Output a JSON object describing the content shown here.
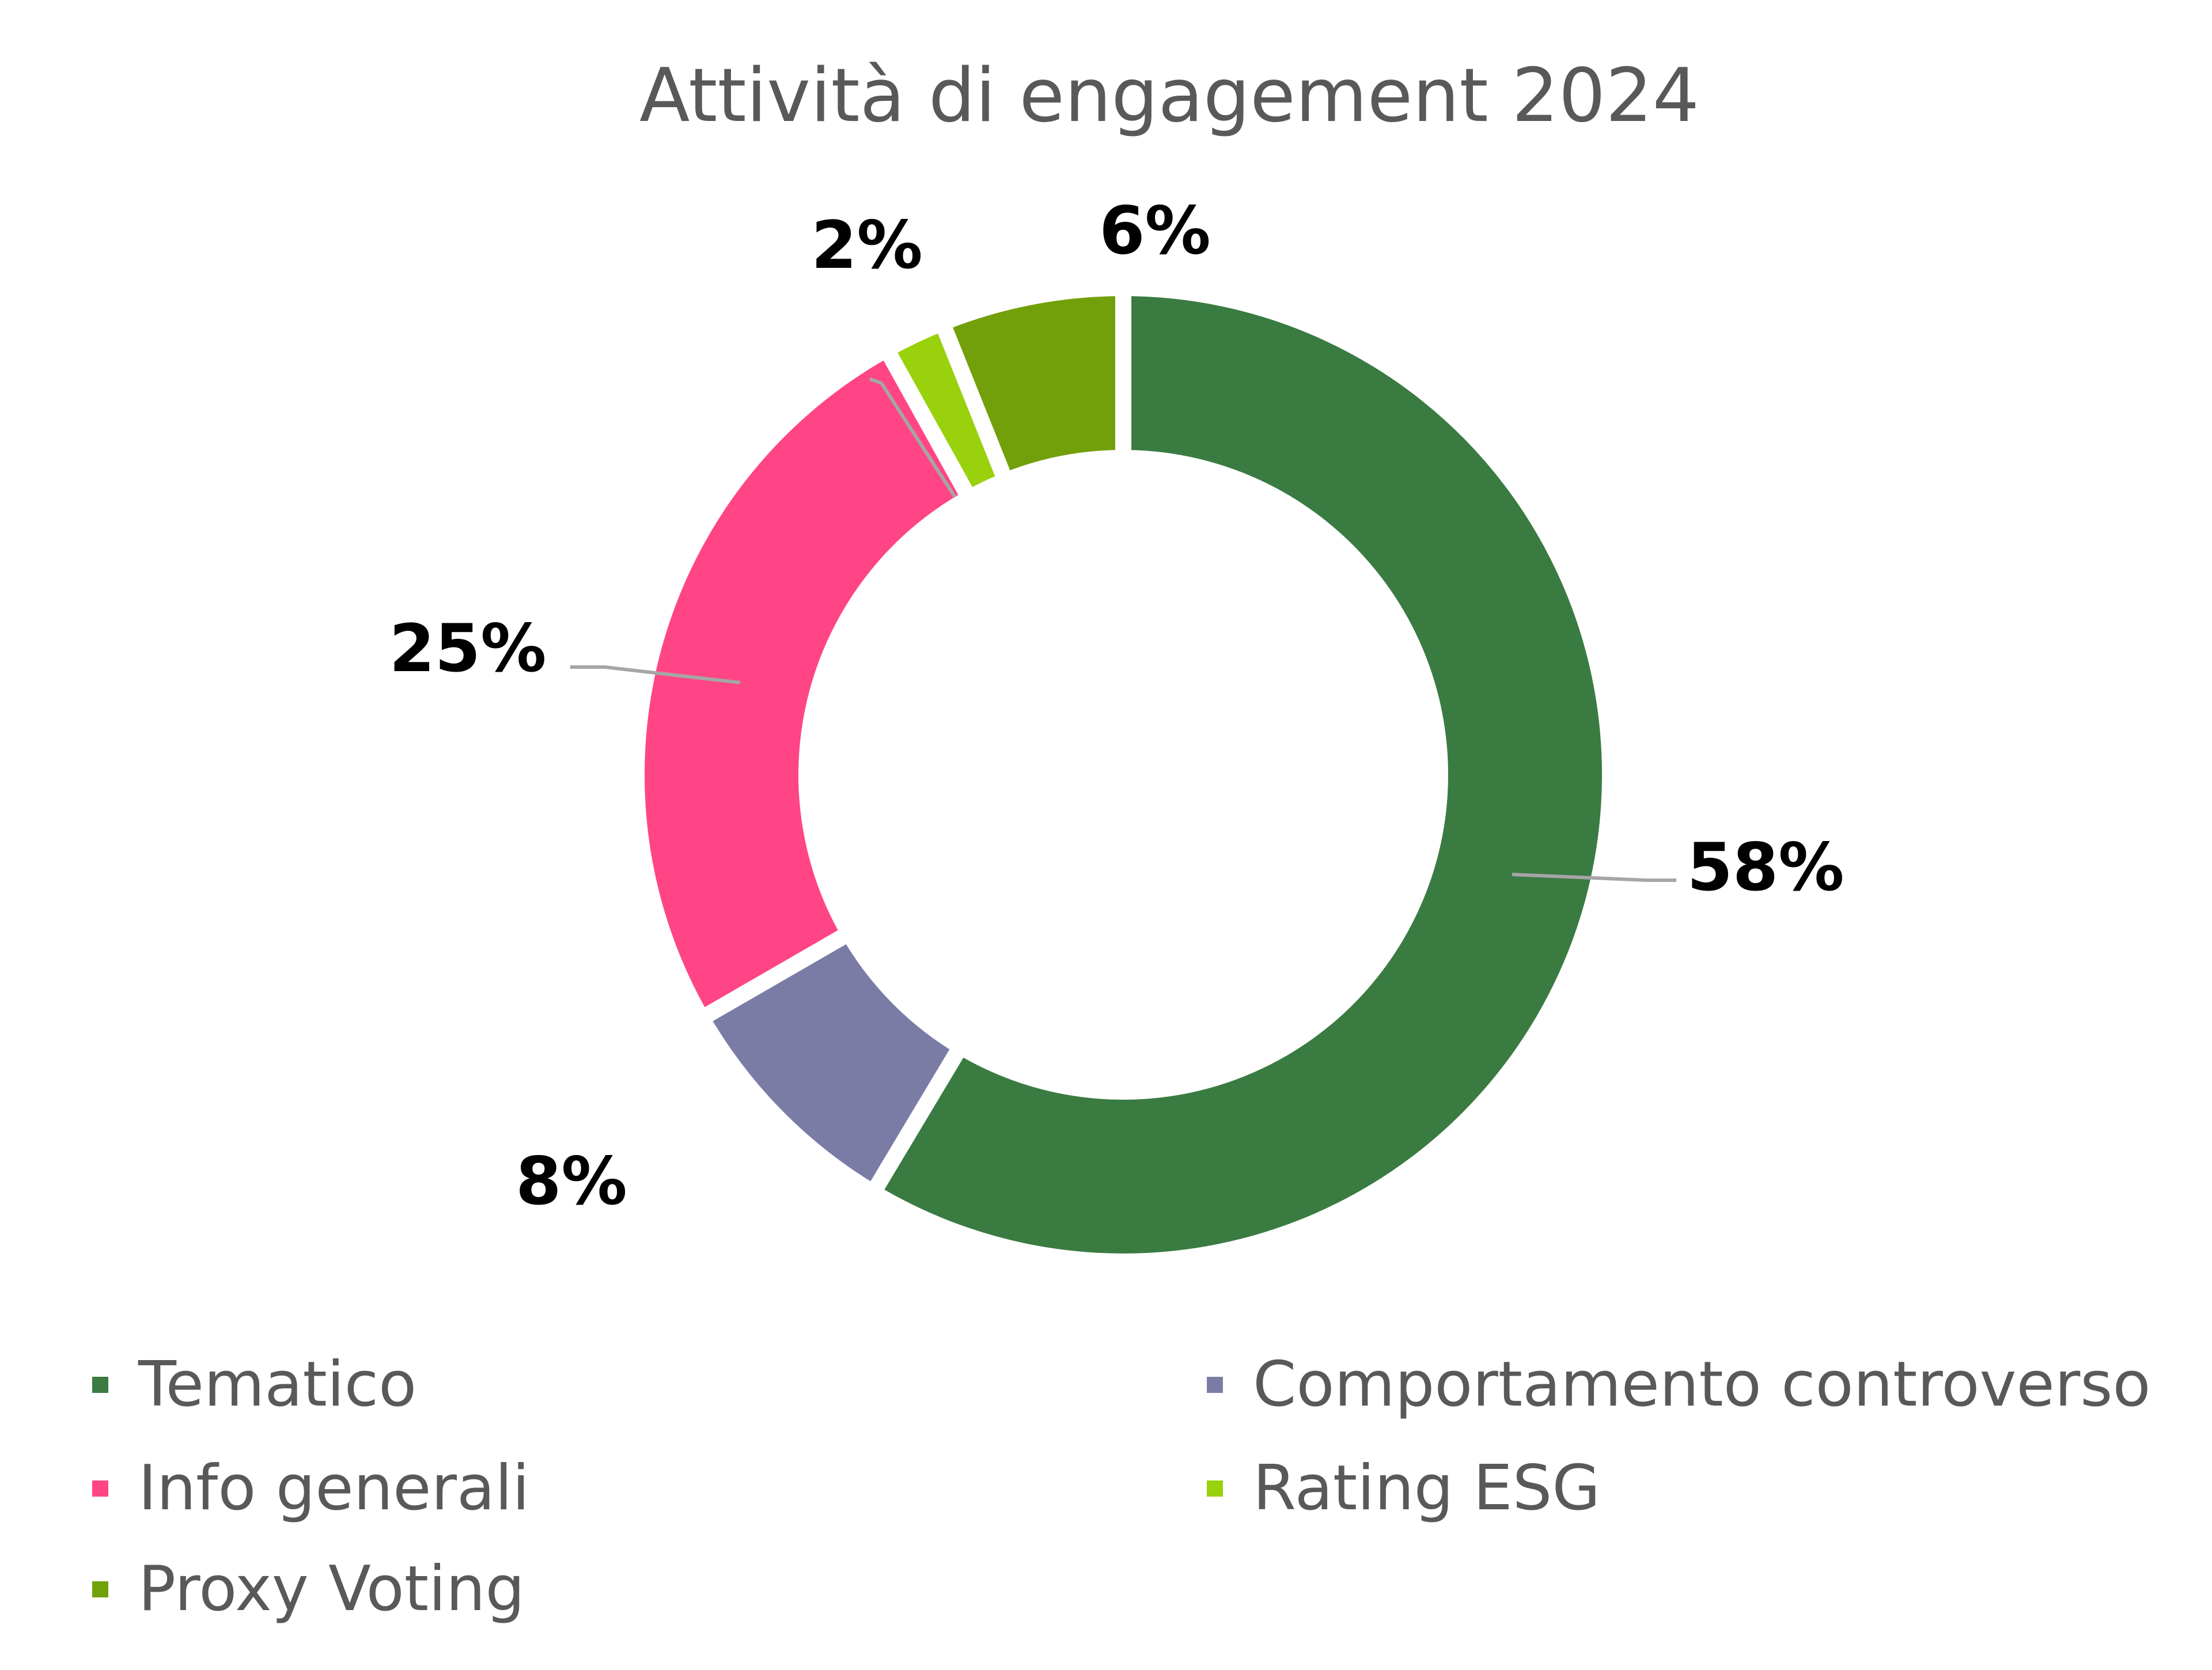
{
  "chart_data": {
    "type": "pie",
    "variant": "donut",
    "title": "Attività di engagement 2024",
    "categories": [
      "Tematico",
      "Comportamento controverso",
      "Info generali",
      "Rating ESG",
      "Proxy Voting"
    ],
    "values": [
      58,
      8,
      25,
      2,
      6
    ],
    "labels": [
      "58%",
      "8%",
      "25%",
      "2%",
      "6%"
    ],
    "colors": [
      "#3a7b42",
      "#7b7ca6",
      "#ff4585",
      "#99d10d",
      "#72a00a"
    ],
    "legend_position": "bottom",
    "legend_order": [
      "Tematico",
      "Comportamento controverso",
      "Info generali",
      "Rating ESG",
      "Proxy Voting"
    ]
  }
}
